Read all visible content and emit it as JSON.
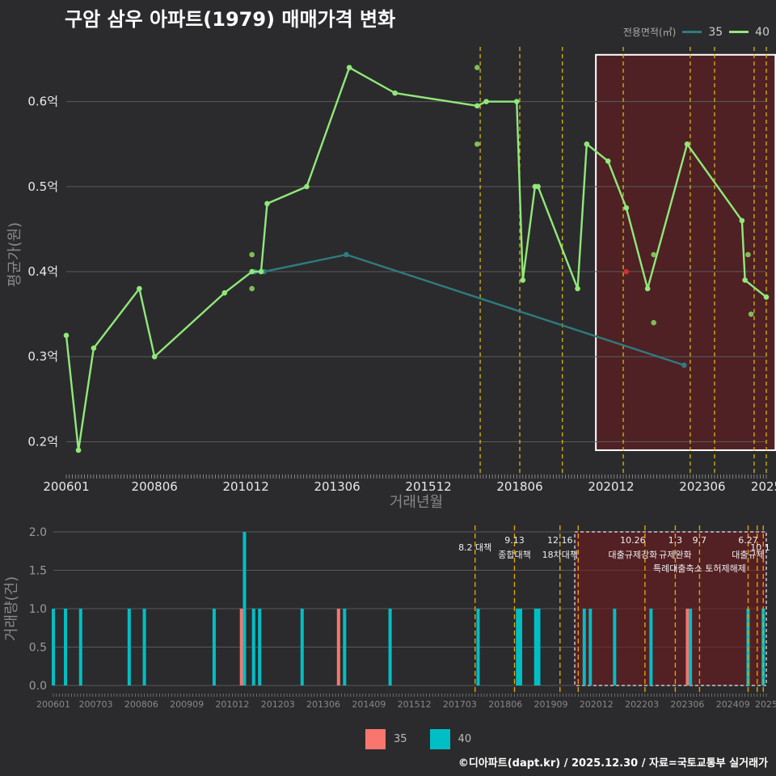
{
  "title": "구암 삼우 아파트(1979) 매매가격 변화",
  "footer": "©디아파트(dapt.kr) / 2025.12.30 / 자료=국토교통부 실거래가",
  "colors": {
    "s35": "#2e7c80",
    "s40": "#90e87a",
    "bar35": "#f8766d",
    "bar40": "#00bfc4",
    "vline": "#e5c100",
    "grid": "#5a5a5a"
  },
  "chart_data": [
    {
      "type": "line",
      "title": "구암 삼우 아파트(1979) 매매가격 변화",
      "xlabel": "거래년월",
      "ylabel": "평균가(원)",
      "x_range_month_index": [
        0,
        230
      ],
      "ylim": [
        0.17,
        0.67
      ],
      "yticks": [
        0.2,
        0.3,
        0.4,
        0.5,
        0.6
      ],
      "ytick_labels": [
        "0.2억",
        "0.3억",
        "0.4억",
        "0.5억",
        "0.6억"
      ],
      "xtick_labels": [
        "200601",
        "200806",
        "201012",
        "201306",
        "201512",
        "201806",
        "202012",
        "202306",
        "2025"
      ],
      "xtick_months": [
        0,
        29,
        59,
        89,
        119,
        149,
        179,
        209,
        230
      ],
      "legend_title": "전용면적(㎡)",
      "legend": [
        "35",
        "40"
      ],
      "vlines_month": [
        136,
        149,
        163,
        183,
        205,
        213,
        226,
        230,
        234
      ],
      "highlight_month_range": [
        174,
        233
      ],
      "highlight_y_range": [
        0.19,
        0.655
      ],
      "series": [
        {
          "name": "35",
          "x": [
            62,
            65,
            92,
            203
          ],
          "y": [
            0.4,
            0.4,
            0.42,
            0.29
          ]
        },
        {
          "name": "40",
          "x": [
            0,
            4,
            9,
            24,
            29,
            52,
            61,
            64,
            66,
            79,
            93,
            108,
            135,
            138,
            148,
            150,
            154,
            155,
            168,
            171,
            178,
            184,
            191,
            204,
            222,
            223,
            230
          ],
          "y": [
            0.325,
            0.19,
            0.31,
            0.38,
            0.3,
            0.375,
            0.4,
            0.4,
            0.48,
            0.5,
            0.64,
            0.61,
            0.595,
            0.6,
            0.6,
            0.39,
            0.5,
            0.5,
            0.38,
            0.55,
            0.53,
            0.475,
            0.38,
            0.55,
            0.46,
            0.39,
            0.37
          ]
        }
      ],
      "scatter_points": [
        {
          "name": "40",
          "x": [
            135,
            135,
            61,
            61,
            193,
            193,
            224,
            225
          ],
          "y": [
            0.64,
            0.55,
            0.42,
            0.38,
            0.42,
            0.34,
            0.42,
            0.35
          ]
        },
        {
          "name": "35",
          "x": [
            184
          ],
          "y": [
            0.4
          ]
        }
      ]
    },
    {
      "type": "bar",
      "xlabel": "",
      "ylabel": "거래량(건)",
      "ylim": [
        0,
        2.0
      ],
      "yticks": [
        0.0,
        0.5,
        1.0,
        1.5,
        2.0
      ],
      "ytick_labels": [
        "0.0",
        "0.5",
        "1.0",
        "1.5",
        "2.0"
      ],
      "xtick_labels": [
        "200601",
        "200703",
        "200806",
        "200909",
        "201012",
        "201203",
        "201306",
        "201409",
        "201512",
        "201703",
        "201806",
        "201909",
        "202012",
        "202203",
        "202306",
        "202409",
        "2025"
      ],
      "xtick_months": [
        0,
        14,
        29,
        44,
        59,
        74,
        89,
        104,
        119,
        134,
        149,
        164,
        179,
        194,
        209,
        224,
        235
      ],
      "series": [
        {
          "name": "35",
          "x": [
            62,
            94,
            209
          ],
          "values": [
            1,
            1,
            1
          ]
        },
        {
          "name": "40",
          "x": [
            0,
            4,
            9,
            25,
            30,
            53,
            63,
            66,
            68,
            82,
            96,
            111,
            140,
            153,
            154,
            159,
            160,
            175,
            177,
            185,
            197,
            210,
            229,
            234
          ],
          "values": [
            1,
            1,
            1,
            1,
            1,
            1,
            2,
            1,
            1,
            1,
            1,
            1,
            1,
            1,
            1,
            1,
            1,
            1,
            1,
            1,
            1,
            1,
            1,
            1
          ]
        }
      ],
      "policy_annotations": [
        {
          "date": "8.2 대책",
          "month": 139
        },
        {
          "date": "9.13",
          "label": "종합대책",
          "month": 152
        },
        {
          "date": "12.16",
          "label": "18차대책",
          "month": 167
        },
        {
          "date": "10.26",
          "label": "대출규제강화",
          "month": 191
        },
        {
          "date": "1.3",
          "label": "규제완화",
          "month": 205
        },
        {
          "date": "9.7",
          "label": "특례대출축소 토허제해제",
          "month": 213
        },
        {
          "date": "6.27",
          "label": "대출규제",
          "month": 229
        },
        {
          "date": "10.1",
          "month": 233
        }
      ],
      "vlines_month": [
        139,
        152,
        167,
        173,
        195,
        205,
        213,
        229,
        232,
        234
      ],
      "highlight_month_range": [
        174,
        235
      ]
    }
  ]
}
